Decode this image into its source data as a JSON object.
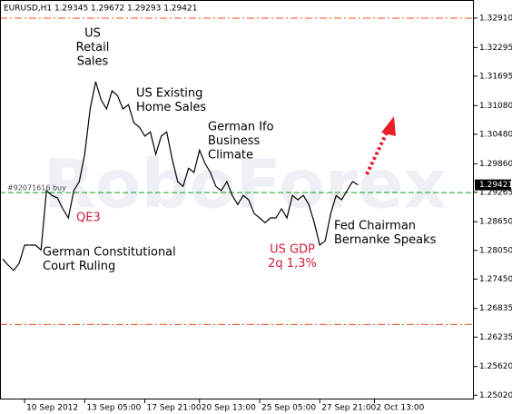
{
  "chart_data": {
    "type": "line",
    "title": "EURUSD,H1  1.29345 1.29672 1.29293 1.29421",
    "watermark": "RoboForex",
    "color": "#000000",
    "values": [
      1.2787,
      1.2774,
      1.2763,
      1.2778,
      1.2816,
      1.2816,
      1.2816,
      1.2806,
      1.293,
      1.292,
      1.2915,
      1.2892,
      1.2873,
      1.293,
      1.2949,
      1.3006,
      1.3101,
      1.3158,
      1.312,
      1.3101,
      1.3139,
      1.3129,
      1.3101,
      1.311,
      1.3072,
      1.3063,
      1.3044,
      1.3053,
      1.3006,
      1.3044,
      1.3053,
      1.2996,
      1.2949,
      1.2939,
      1.2977,
      1.2968,
      1.3015,
      1.2987,
      1.2968,
      1.2939,
      1.293,
      1.2949,
      1.292,
      1.2901,
      1.292,
      1.2911,
      1.2882,
      1.2873,
      1.2863,
      1.2873,
      1.2873,
      1.2892,
      1.2873,
      1.292,
      1.2911,
      1.292,
      1.2901,
      1.2863,
      1.2816,
      1.2825,
      1.2882,
      1.292,
      1.2911,
      1.293,
      1.2949,
      1.29421
    ],
    "xlim": [
      -0.5,
      86.2
    ],
    "xticks": [
      {
        "value": 4,
        "label": "10 Sep 2012"
      },
      {
        "value": 15,
        "label": "13 Sep 05:00"
      },
      {
        "value": 26,
        "label": "17 Sep 21:00"
      },
      {
        "value": 36,
        "label": "20 Sep 13:00"
      },
      {
        "value": 47,
        "label": "25 Sep 05:00"
      },
      {
        "value": 58,
        "label": "27 Sep 21:00"
      },
      {
        "value": 68,
        "label": "2 Oct 13:00"
      }
    ],
    "ylim": [
      1.2493,
      1.3329
    ],
    "yticks": [
      {
        "value": 1.3291,
        "label": "1.32910"
      },
      1.32295,
      1.31695,
      {
        "value": 1.3108,
        "label": "1.31080"
      },
      {
        "value": 1.3048,
        "label": "1.30480"
      },
      {
        "value": 1.2986,
        "label": "1.29860"
      },
      1.29265,
      {
        "value": 1.2865,
        "label": "1.28650"
      },
      {
        "value": 1.2805,
        "label": "1.28050"
      },
      {
        "value": 1.2745,
        "label": "1.27450"
      },
      1.26835,
      1.26235,
      {
        "value": 1.2562,
        "label": "1.25620"
      },
      {
        "value": 1.2502,
        "label": "1.25020"
      }
    ],
    "last_price": 1.29421,
    "order_line": {
      "value": 1.2926,
      "label": "#92071616 buy",
      "color": "#1a9a1a"
    },
    "levels": [
      1.3291,
      1.265
    ],
    "levels_color": "#e8501a",
    "annotations": [
      {
        "lines": [
          "US",
          "Retail",
          "Sales"
        ],
        "color": "#000000"
      },
      {
        "lines": [
          "US Existing",
          "Home Sales"
        ],
        "color": "#000000"
      },
      {
        "lines": [
          "German Ifo",
          "Business",
          "Climate"
        ],
        "color": "#000000"
      },
      {
        "lines": [
          "QE3"
        ],
        "color": "#d0203c"
      },
      {
        "lines": [
          "German Constitutional",
          "Court Ruling"
        ],
        "color": "#000000"
      },
      {
        "lines": [
          "US GDP",
          "2q 1,3%"
        ],
        "color": "#d0203c"
      },
      {
        "lines": [
          "Fed Chairman",
          "Bernanke Speaks"
        ],
        "color": "#000000"
      }
    ]
  }
}
